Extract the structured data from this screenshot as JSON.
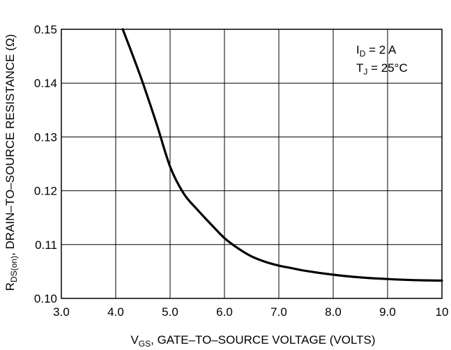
{
  "chart_data": {
    "type": "line",
    "title": "",
    "xlabel": {
      "main": "V",
      "sub": "GS",
      "rest": ", GATE–TO–SOURCE VOLTAGE (VOLTS)"
    },
    "ylabel": {
      "main": "R",
      "sub": "DS(on)",
      "rest": ", DRAIN–TO–SOURCE RESISTANCE (Ω)"
    },
    "xlim": [
      3.0,
      10.0
    ],
    "ylim": [
      0.1,
      0.15
    ],
    "x_ticks": [
      "3.0",
      "4.0",
      "5.0",
      "6.0",
      "7.0",
      "8.0",
      "9.0",
      "10"
    ],
    "y_ticks": [
      "0.10",
      "0.11",
      "0.12",
      "0.13",
      "0.14",
      "0.15"
    ],
    "grid": true,
    "conditions": [
      {
        "main": "I",
        "sub": "D",
        "rest": " = 2 A"
      },
      {
        "main": "T",
        "sub": "J",
        "rest": " = 25°C"
      }
    ],
    "series": [
      {
        "x": [
          4.13,
          4.3,
          4.5,
          4.75,
          5.0,
          5.25,
          5.5,
          5.75,
          6.0,
          6.25,
          6.5,
          6.75,
          7.0,
          7.25,
          7.5,
          8.0,
          8.5,
          9.0,
          9.5,
          10.0
        ],
        "y": [
          0.15,
          0.1455,
          0.14,
          0.1325,
          0.1245,
          0.1195,
          0.1165,
          0.1138,
          0.1112,
          0.1093,
          0.1078,
          0.1068,
          0.1061,
          0.1056,
          0.1051,
          0.1044,
          0.1039,
          0.1036,
          0.1034,
          0.1033
        ]
      }
    ]
  }
}
